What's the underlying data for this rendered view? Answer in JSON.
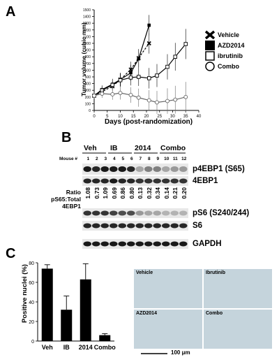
{
  "panels": {
    "a": "A",
    "b": "B",
    "c": "C"
  },
  "colors": {
    "ink": "#000000",
    "blot_bg": "#e8e8e8",
    "ihc_blue": "#c5d4dc"
  },
  "chart_data": [
    {
      "type": "line",
      "ylabel": "Tumor volume (cubic mm)",
      "xlabel": "Days (post-randomization)",
      "xlim": [
        0,
        40
      ],
      "ylim": [
        0,
        1500
      ],
      "xticks": [
        0,
        5,
        10,
        15,
        20,
        25,
        30,
        35,
        40
      ],
      "yticks": [
        0,
        100,
        200,
        300,
        400,
        500,
        600,
        700,
        800,
        900,
        1000,
        1100,
        1200,
        1300,
        1400,
        1500
      ],
      "series": [
        {
          "name": "Vehicle",
          "marker": "x",
          "dashed": true,
          "x": [
            0,
            3,
            7,
            10,
            14,
            17,
            21
          ],
          "y": [
            220,
            280,
            360,
            460,
            610,
            780,
            1000
          ]
        },
        {
          "name": "AZD2014",
          "marker": "filled-square",
          "dashed": false,
          "x": [
            0,
            3,
            7,
            10,
            14,
            17,
            21
          ],
          "y": [
            220,
            310,
            390,
            460,
            560,
            770,
            1270
          ]
        },
        {
          "name": "ibrutinib",
          "marker": "open-square",
          "dashed": false,
          "x": [
            0,
            3,
            7,
            10,
            14,
            17,
            21,
            24,
            28,
            31,
            35
          ],
          "y": [
            220,
            300,
            380,
            450,
            490,
            500,
            480,
            520,
            650,
            800,
            990
          ]
        },
        {
          "name": "Combo",
          "marker": "open-circle",
          "dashed": false,
          "x": [
            0,
            3,
            7,
            10,
            14,
            17,
            21,
            24,
            28,
            31,
            35
          ],
          "y": [
            220,
            250,
            240,
            260,
            230,
            190,
            150,
            120,
            140,
            160,
            200
          ]
        }
      ]
    },
    {
      "type": "bar",
      "ylabel": "Positive nuclei (%)",
      "categories": [
        "Veh",
        "IB",
        "2014",
        "Combo"
      ],
      "values": [
        74,
        32,
        63,
        6
      ],
      "errors": [
        4,
        14,
        16,
        1.5
      ],
      "ylim": [
        0,
        80
      ],
      "yticks": [
        0,
        20,
        40,
        60,
        80
      ]
    }
  ],
  "blot": {
    "mouse_label": "Mouse #",
    "groups": [
      "Veh",
      "IB",
      "2014",
      "Combo"
    ],
    "lanes": [
      "1",
      "2",
      "3",
      "4",
      "5",
      "6",
      "7",
      "8",
      "9",
      "10",
      "11",
      "12"
    ],
    "bands": [
      "p4EBP1 (S65)",
      "4EBP1",
      "pS6 (S240/244)",
      "S6",
      "GAPDH"
    ],
    "ratio_label_1": "Ratio",
    "ratio_label_2": "pS65:Total 4EBP1",
    "ratios": [
      "1.08",
      "0.73",
      "1.09",
      "0.69",
      "0.86",
      "0.80",
      "0.13",
      "0.32",
      "0.34",
      "0.14",
      "0.21",
      "0.20"
    ]
  },
  "ihc": {
    "tiles": [
      "Vehicle",
      "Ibrutinib",
      "AZD2014",
      "Combo"
    ],
    "scale_bar": "100 μm"
  }
}
